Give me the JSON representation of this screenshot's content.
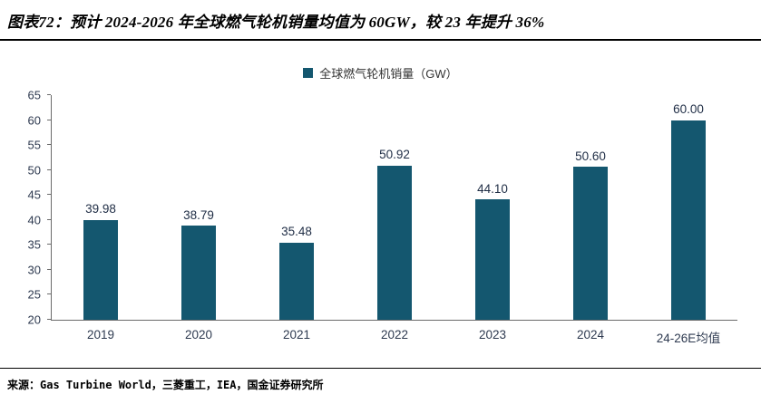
{
  "header": {
    "title": "图表72：预计 2024-2026 年全球燃气轮机销量均值为 60GW，较 23 年提升 36%"
  },
  "legend": {
    "label": "全球燃气轮机销量（GW）"
  },
  "footer": {
    "source": "来源：Gas Turbine World，三菱重工，IEA，国金证券研究所"
  },
  "chart_data": {
    "type": "bar",
    "title": "全球燃气轮机销量（GW）",
    "categories": [
      "2019",
      "2020",
      "2021",
      "2022",
      "2023",
      "2024",
      "24-26E均值"
    ],
    "values": [
      39.98,
      38.79,
      35.48,
      50.92,
      44.1,
      50.6,
      60.0
    ],
    "value_labels": [
      "39.98",
      "38.79",
      "35.48",
      "50.92",
      "44.10",
      "50.60",
      "60.00"
    ],
    "ylim": [
      20,
      65
    ],
    "ytick_step": 5,
    "bar_color": "#14576F",
    "grid": false,
    "legend_position": "top-center"
  }
}
